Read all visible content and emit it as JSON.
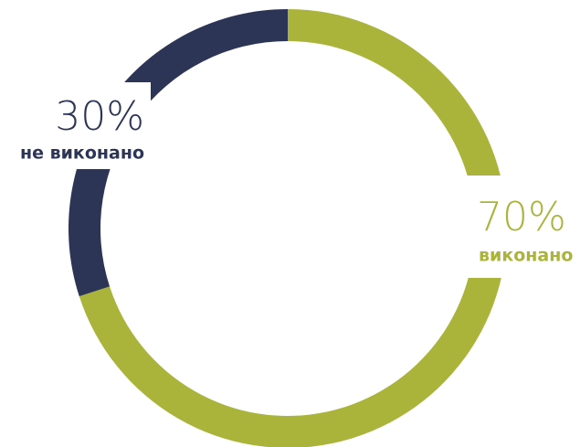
{
  "chart_data": {
    "type": "pie",
    "donut": true,
    "categories": [
      "виконано",
      "не виконано"
    ],
    "values": [
      70,
      30
    ],
    "value_labels": [
      "70%",
      "30%"
    ],
    "colors": [
      "#aab43a",
      "#2c3555"
    ]
  }
}
